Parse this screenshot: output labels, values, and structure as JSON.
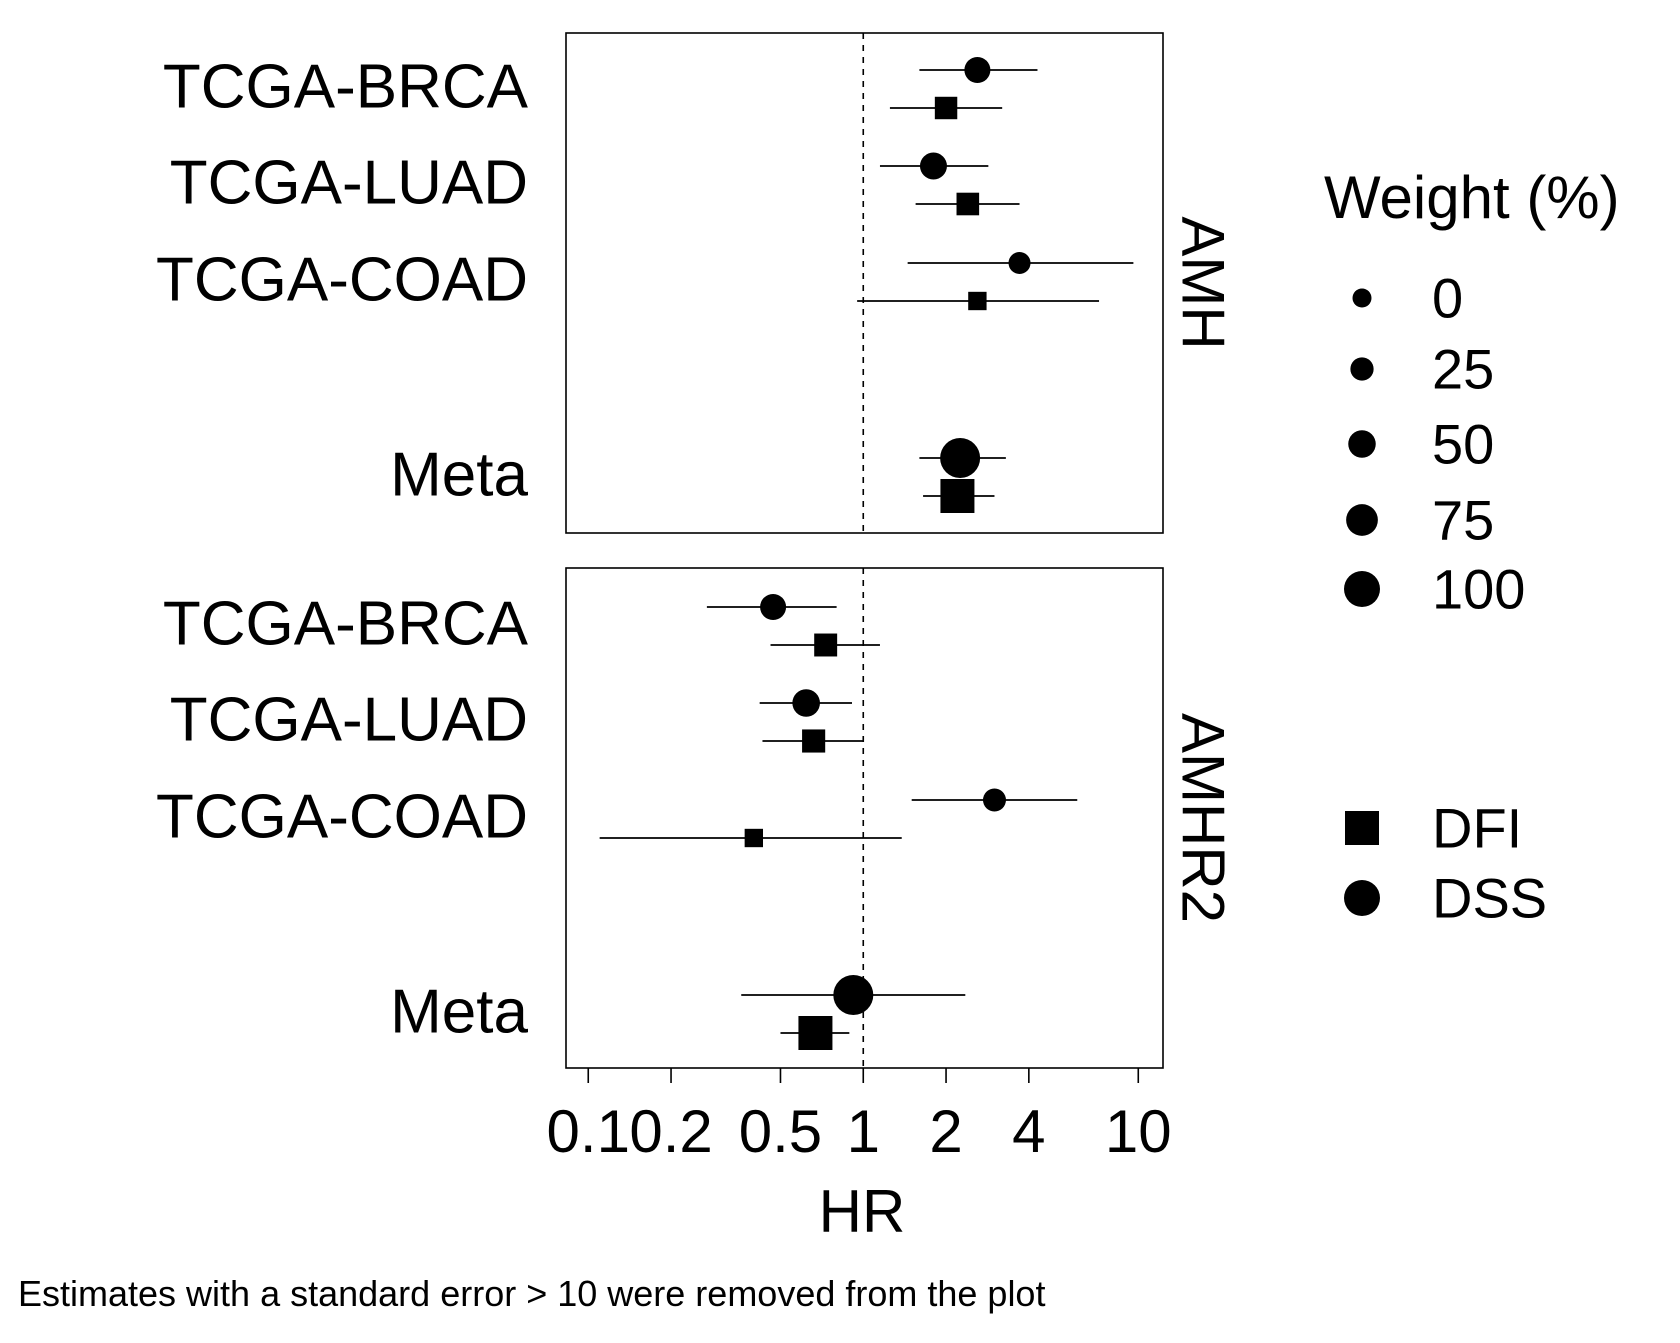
{
  "chart_data": {
    "type": "forest",
    "xlabel": "HR",
    "x_scale": "log",
    "reference_line": 1,
    "xlim": [
      0.1,
      12.3
    ],
    "xticks": [
      {
        "value": 0.1,
        "label": "0.1"
      },
      {
        "value": 0.2,
        "label": "0.2"
      },
      {
        "value": 0.5,
        "label": "0.5"
      },
      {
        "value": 1,
        "label": "1"
      },
      {
        "value": 2,
        "label": "2"
      },
      {
        "value": 4,
        "label": "4"
      },
      {
        "value": 10,
        "label": "10"
      }
    ],
    "footnote": "Estimates with a standard error > 10 were removed from the plot",
    "legend_size": {
      "title": "Weight (%)",
      "labels": [
        "0",
        "25",
        "50",
        "75",
        "100"
      ],
      "values": [
        0,
        25,
        50,
        75,
        100
      ]
    },
    "legend_shape": {
      "entries": [
        {
          "label": "DFI",
          "shape": "square"
        },
        {
          "label": "DSS",
          "shape": "circle"
        }
      ]
    },
    "panels": [
      {
        "strip": "AMH",
        "rows": [
          {
            "label": "TCGA-BRCA",
            "estimates": [
              {
                "measure": "DSS",
                "hr": 2.6,
                "lo": 1.6,
                "hi": 4.3,
                "weight": 30
              },
              {
                "measure": "DFI",
                "hr": 2.0,
                "lo": 1.25,
                "hi": 3.2,
                "weight": 32
              }
            ]
          },
          {
            "label": "TCGA-LUAD",
            "estimates": [
              {
                "measure": "DSS",
                "hr": 1.8,
                "lo": 1.15,
                "hi": 2.85,
                "weight": 35
              },
              {
                "measure": "DFI",
                "hr": 2.4,
                "lo": 1.55,
                "hi": 3.7,
                "weight": 33
              }
            ]
          },
          {
            "label": "TCGA-COAD",
            "estimates": [
              {
                "measure": "DSS",
                "hr": 3.7,
                "lo": 1.45,
                "hi": 9.6,
                "weight": 10
              },
              {
                "measure": "DFI",
                "hr": 2.6,
                "lo": 0.95,
                "hi": 7.2,
                "weight": 8
              }
            ]
          },
          {
            "label": "Meta",
            "estimates": [
              {
                "measure": "DSS",
                "hr": 2.25,
                "lo": 1.6,
                "hi": 3.3,
                "weight": 100
              },
              {
                "measure": "DFI",
                "hr": 2.2,
                "lo": 1.65,
                "hi": 3.0,
                "weight": 100
              }
            ]
          }
        ]
      },
      {
        "strip": "AMHR2",
        "rows": [
          {
            "label": "TCGA-BRCA",
            "estimates": [
              {
                "measure": "DSS",
                "hr": 0.47,
                "lo": 0.27,
                "hi": 0.8,
                "weight": 30
              },
              {
                "measure": "DFI",
                "hr": 0.73,
                "lo": 0.46,
                "hi": 1.15,
                "weight": 35
              }
            ]
          },
          {
            "label": "TCGA-LUAD",
            "estimates": [
              {
                "measure": "DSS",
                "hr": 0.62,
                "lo": 0.42,
                "hi": 0.91,
                "weight": 38
              },
              {
                "measure": "DFI",
                "hr": 0.66,
                "lo": 0.43,
                "hi": 1.0,
                "weight": 36
              }
            ]
          },
          {
            "label": "TCGA-COAD",
            "estimates": [
              {
                "measure": "DSS",
                "hr": 3.0,
                "lo": 1.5,
                "hi": 6.0,
                "weight": 15
              },
              {
                "measure": "DFI",
                "hr": 0.4,
                "lo": 0.11,
                "hi": 1.38,
                "weight": 8
              }
            ]
          },
          {
            "label": "Meta",
            "estimates": [
              {
                "measure": "DSS",
                "hr": 0.92,
                "lo": 0.36,
                "hi": 2.35,
                "weight": 100
              },
              {
                "measure": "DFI",
                "hr": 0.67,
                "lo": 0.5,
                "hi": 0.89,
                "weight": 100
              }
            ]
          }
        ]
      }
    ]
  }
}
